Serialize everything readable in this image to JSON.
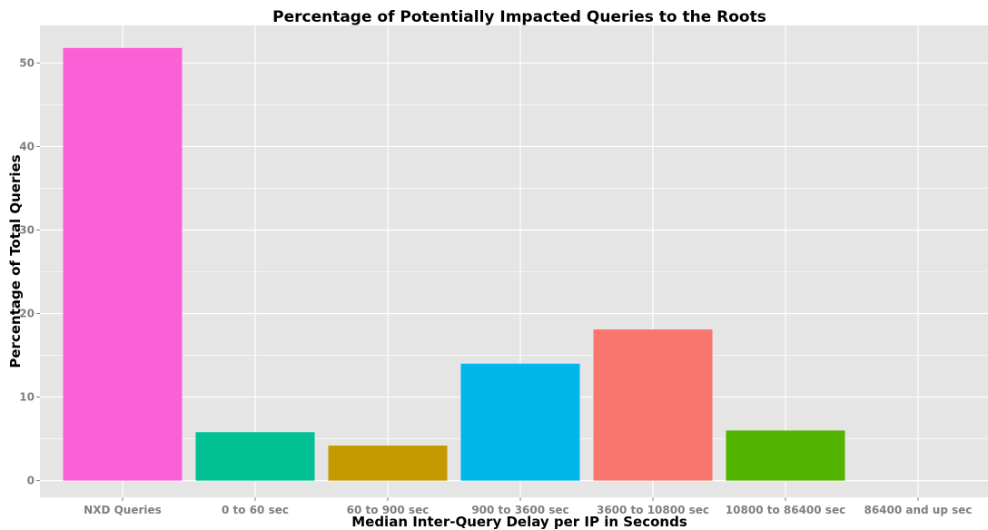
{
  "chart_data": {
    "type": "bar",
    "title": "Percentage of Potentially Impacted Queries to the Roots",
    "xlabel": "Median Inter-Query Delay per IP in Seconds",
    "ylabel": "Percentage of Total Queries",
    "categories": [
      "NXD Queries",
      "0 to 60 sec",
      "60 to 900 sec",
      "900 to 3600 sec",
      "3600 to 10800 sec",
      "10800 to 86400 sec",
      "86400 and up sec"
    ],
    "values": [
      51.8,
      5.8,
      4.2,
      14.0,
      18.1,
      6.0,
      0.0
    ],
    "colors": [
      "#fb61d7",
      "#00c094",
      "#c49a00",
      "#00b6eb",
      "#f8766d",
      "#53b400",
      "#a58aff"
    ],
    "ylim": [
      -2,
      54.5
    ],
    "yticks": [
      0,
      10,
      20,
      30,
      40,
      50
    ],
    "yticks_minor": [
      5,
      15,
      25,
      35,
      45
    ],
    "grid": true,
    "background": "#e5e5e5",
    "gridline_color": "#ffffff"
  }
}
